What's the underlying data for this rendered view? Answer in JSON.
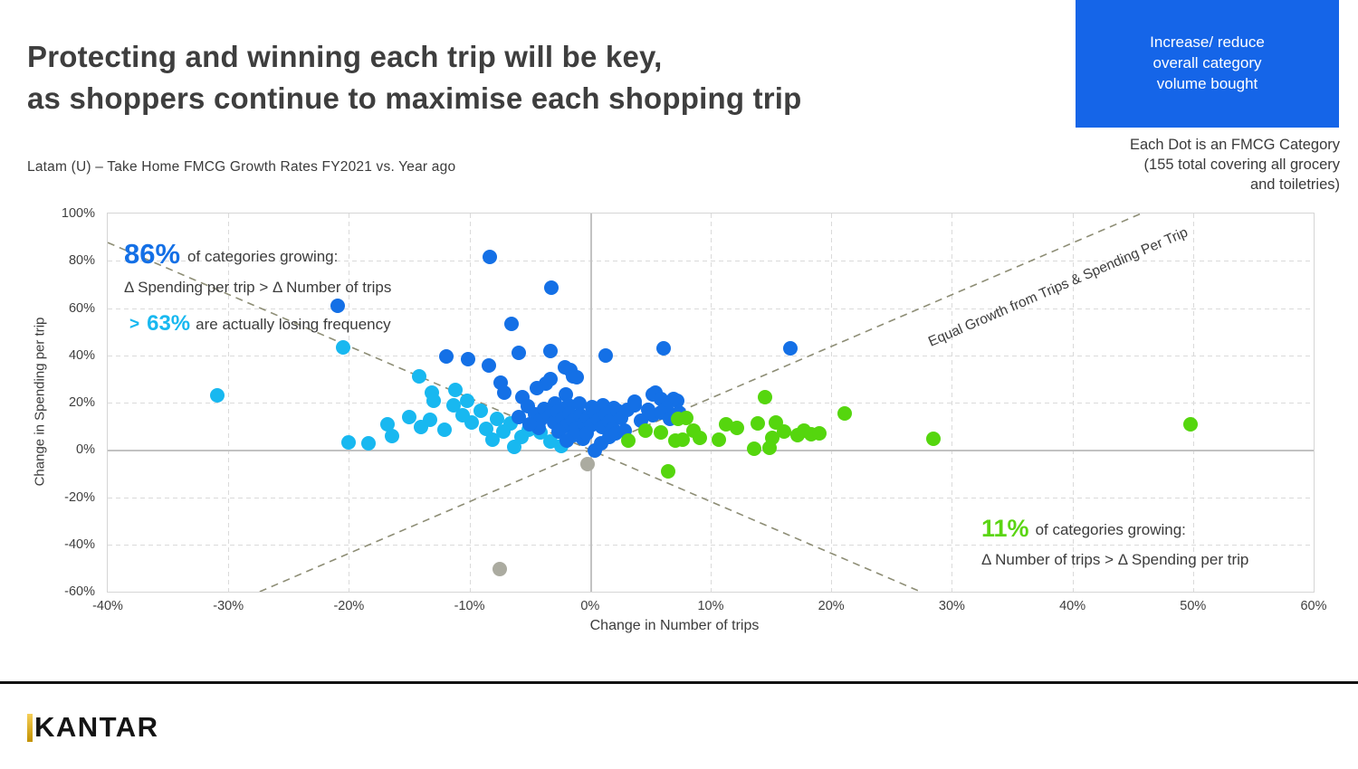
{
  "slide": {
    "title_line1": "Protecting and winning each trip will be key,",
    "title_line2": "as shoppers continue to maximise each shopping trip",
    "subtitle": "Latam (U) –  Take Home FMCG Growth Rates FY2021 vs. Year ago",
    "callout_box": {
      "line1": "Increase/ reduce",
      "line2": "overall category",
      "line3": "volume bought",
      "bg_color": "#1565E8",
      "text_color": "#FFFFFF"
    },
    "dot_note": {
      "line1": "Each Dot is an FMCG Category",
      "line2": "(155 total covering all grocery",
      "line3": "and toiletries)"
    },
    "logo_text": "KANTAR"
  },
  "annotations": {
    "spending_led": {
      "pct": "86%",
      "rest": "of categories growing:",
      "line2": "Δ Spending per trip > Δ Number of trips",
      "pct_color": "#1470E6"
    },
    "losing_frequency": {
      "arrow": ">",
      "pct": "63%",
      "rest": "are actually losing frequency",
      "pct_color": "#18B8F0"
    },
    "trips_led": {
      "pct": "11%",
      "rest": "of categories growing:",
      "line2": "Δ Number of trips > Δ Spending per trip",
      "pct_color": "#5BD513"
    },
    "diagonal_label": "Equal Growth from Trips & Spending Per Trip"
  },
  "chart_data": {
    "type": "scatter",
    "title": "Latam (U) – Take Home FMCG Growth Rates FY2021 vs. Year ago",
    "xlabel": "Change in Number of trips",
    "ylabel": "Change in Spending per trip",
    "xlim": [
      -40,
      60
    ],
    "ylim": [
      -60,
      100
    ],
    "grid": "dashed",
    "x_ticks": [
      {
        "v": -40,
        "label": "-40%"
      },
      {
        "v": -30,
        "label": "-30%"
      },
      {
        "v": -20,
        "label": "-20%"
      },
      {
        "v": -10,
        "label": "-10%"
      },
      {
        "v": 0,
        "label": "0%"
      },
      {
        "v": 10,
        "label": "10%"
      },
      {
        "v": 20,
        "label": "20%"
      },
      {
        "v": 30,
        "label": "30%"
      },
      {
        "v": 40,
        "label": "40%"
      },
      {
        "v": 50,
        "label": "50%"
      },
      {
        "v": 60,
        "label": "60%"
      }
    ],
    "y_ticks": [
      {
        "v": 100,
        "label": "100%"
      },
      {
        "v": 80,
        "label": "80%"
      },
      {
        "v": 60,
        "label": "60%"
      },
      {
        "v": 40,
        "label": "40%"
      },
      {
        "v": 20,
        "label": "20%"
      },
      {
        "v": 0,
        "label": "0%"
      },
      {
        "v": -20,
        "label": "-20%"
      },
      {
        "v": -40,
        "label": "-40%"
      },
      {
        "v": -60,
        "label": "-60%"
      }
    ],
    "reference_lines": [
      {
        "name": "equal-growth-ascending",
        "style": "dashed",
        "color": "#8D8D75",
        "points": [
          [
            -27.4,
            -60
          ],
          [
            45.7,
            100
          ]
        ]
      },
      {
        "name": "equal-growth-descending",
        "style": "dashed",
        "color": "#8D8D75",
        "points": [
          [
            -40,
            87.7
          ],
          [
            27.4,
            -60
          ]
        ]
      }
    ],
    "series": [
      {
        "name": "volume-declining-gray",
        "color": "#ABABA0",
        "points": [
          [
            -0.2,
            -6.0
          ],
          [
            -7.5,
            -50.5
          ]
        ]
      },
      {
        "name": "losing-frequency-cyan",
        "color": "#18B8F0",
        "points": [
          [
            -20.5,
            43.5
          ],
          [
            -30.9,
            23.0
          ],
          [
            -14.2,
            31.0
          ],
          [
            -13.1,
            24.1
          ],
          [
            -13.0,
            20.7
          ],
          [
            -11.2,
            25.3
          ],
          [
            -11.3,
            18.8
          ],
          [
            -15.0,
            13.8
          ],
          [
            -13.3,
            12.6
          ],
          [
            -16.4,
            5.7
          ],
          [
            -18.4,
            2.7
          ],
          [
            -20.0,
            3.1
          ],
          [
            -9.1,
            16.5
          ],
          [
            -8.6,
            8.8
          ],
          [
            -7.7,
            13.0
          ],
          [
            -6.6,
            11.1
          ],
          [
            -5.7,
            5.4
          ],
          [
            -6.3,
            1.1
          ],
          [
            -4.8,
            10.7
          ],
          [
            -4.1,
            7.3
          ],
          [
            -3.3,
            3.4
          ],
          [
            -9.8,
            11.7
          ],
          [
            -10.6,
            14.6
          ],
          [
            -12.1,
            8.4
          ],
          [
            -14.0,
            9.6
          ],
          [
            -8.1,
            4.4
          ],
          [
            -7.2,
            7.8
          ],
          [
            -5.1,
            8.7
          ],
          [
            -10.2,
            20.9
          ],
          [
            -16.8,
            10.9
          ],
          [
            -2.4,
            1.8
          ]
        ]
      },
      {
        "name": "spending-led-blue",
        "color": "#1470E6",
        "points": [
          [
            -8.3,
            81.5
          ],
          [
            -3.2,
            68.5
          ],
          [
            -20.9,
            60.9
          ],
          [
            -6.5,
            53.2
          ],
          [
            16.6,
            43.0
          ],
          [
            6.1,
            42.9
          ],
          [
            1.3,
            39.8
          ],
          [
            -3.3,
            41.7
          ],
          [
            -5.9,
            41.0
          ],
          [
            -11.9,
            39.4
          ],
          [
            -10.1,
            38.3
          ],
          [
            -8.4,
            35.6
          ],
          [
            -2.1,
            34.8
          ],
          [
            -1.6,
            33.7
          ],
          [
            -1.4,
            31.0
          ],
          [
            -1.1,
            30.6
          ],
          [
            -3.3,
            29.9
          ],
          [
            -7.4,
            28.3
          ],
          [
            -3.7,
            27.9
          ],
          [
            -4.4,
            26.0
          ],
          [
            -7.1,
            24.1
          ],
          [
            -5.6,
            22.2
          ],
          [
            -2.0,
            23.4
          ],
          [
            -0.9,
            19.5
          ],
          [
            -1.8,
            18.8
          ],
          [
            -2.9,
            19.6
          ],
          [
            0.2,
            18.2
          ],
          [
            1.1,
            19.0
          ],
          [
            2.0,
            17.6
          ],
          [
            -5.2,
            18.5
          ],
          [
            -4.6,
            15.2
          ],
          [
            -4.1,
            12.8
          ],
          [
            -3.8,
            17.4
          ],
          [
            -3.4,
            14.2
          ],
          [
            -3.0,
            11.5
          ],
          [
            -2.7,
            16.2
          ],
          [
            -2.3,
            13.1
          ],
          [
            -2.0,
            10.2
          ],
          [
            -1.7,
            15.5
          ],
          [
            -1.4,
            12.2
          ],
          [
            -1.1,
            9.4
          ],
          [
            -0.8,
            14.6
          ],
          [
            -0.5,
            11.2
          ],
          [
            -0.2,
            13.6
          ],
          [
            0.1,
            10.4
          ],
          [
            0.4,
            15.8
          ],
          [
            0.7,
            12.6
          ],
          [
            1.0,
            9.8
          ],
          [
            1.3,
            14.9
          ],
          [
            1.6,
            11.8
          ],
          [
            1.9,
            8.9
          ],
          [
            2.3,
            16.5
          ],
          [
            2.6,
            13.4
          ],
          [
            3.1,
            16.8
          ],
          [
            3.7,
            18.8
          ],
          [
            3.7,
            20.3
          ],
          [
            4.2,
            12.4
          ],
          [
            4.8,
            16.8
          ],
          [
            5.2,
            14.5
          ],
          [
            5.4,
            24.1
          ],
          [
            5.2,
            23.4
          ],
          [
            5.9,
            21.4
          ],
          [
            7.2,
            20.7
          ],
          [
            6.9,
            21.4
          ],
          [
            6.3,
            17.8
          ],
          [
            7.4,
            15.6
          ],
          [
            0.4,
            -0.4
          ],
          [
            0.9,
            2.8
          ],
          [
            -0.6,
            4.7
          ],
          [
            1.6,
            5.4
          ],
          [
            2.1,
            6.9
          ],
          [
            -1.3,
            6.3
          ],
          [
            -2.6,
            7.6
          ],
          [
            -1.9,
            4.1
          ],
          [
            2.9,
            8.2
          ],
          [
            -0.3,
            6.9
          ],
          [
            -4.3,
            9.3
          ],
          [
            -5.0,
            11.0
          ],
          [
            -5.9,
            13.9
          ],
          [
            5.9,
            15.9
          ],
          [
            6.6,
            13.2
          ]
        ]
      },
      {
        "name": "trips-led-green",
        "color": "#55D60E",
        "points": [
          [
            14.5,
            22.4
          ],
          [
            21.1,
            15.3
          ],
          [
            15.4,
            11.5
          ],
          [
            13.9,
            11.1
          ],
          [
            11.3,
            10.7
          ],
          [
            12.2,
            9.2
          ],
          [
            10.7,
            4.2
          ],
          [
            17.2,
            6.1
          ],
          [
            17.7,
            8.0
          ],
          [
            18.3,
            6.5
          ],
          [
            19.0,
            6.9
          ],
          [
            16.1,
            7.7
          ],
          [
            15.1,
            5.0
          ],
          [
            13.6,
            0.4
          ],
          [
            14.9,
            0.8
          ],
          [
            28.5,
            4.6
          ],
          [
            49.8,
            11.0
          ],
          [
            6.5,
            -9.0
          ],
          [
            4.6,
            8.0
          ],
          [
            5.9,
            7.3
          ],
          [
            7.1,
            3.8
          ],
          [
            7.7,
            4.2
          ],
          [
            8.6,
            8.0
          ],
          [
            9.1,
            5.0
          ],
          [
            7.3,
            13.0
          ],
          [
            8.0,
            13.4
          ],
          [
            3.2,
            3.8
          ]
        ]
      }
    ]
  }
}
